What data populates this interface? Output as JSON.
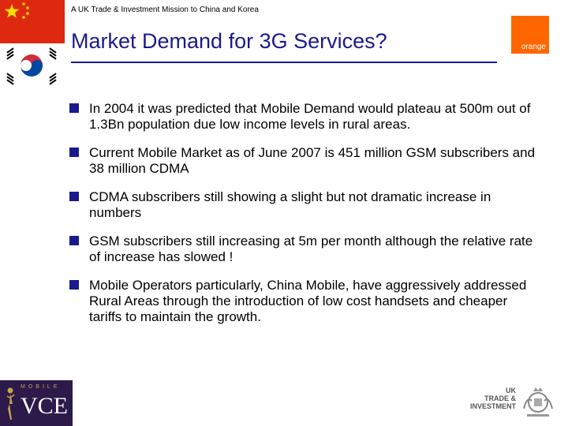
{
  "header": {
    "subtitle": "A UK Trade & Investment Mission to China and Korea",
    "title": "Market Demand for 3G Services?"
  },
  "logos": {
    "orange": "orange",
    "vce_small": "MOBILE",
    "vce_main": "VCE",
    "ukti_lines": [
      "UK",
      "TRADE &",
      "INVESTMENT"
    ]
  },
  "bullets": [
    "In 2004 it was predicted that Mobile Demand would plateau at 500m out of 1.3Bn population due low income levels in rural areas.",
    "Current Mobile Market as of June 2007 is 451 million GSM subscribers and 38 million CDMA",
    "CDMA subscribers still showing a slight but not dramatic increase in numbers",
    "GSM subscribers still increasing at 5m per month although the relative rate of increase has slowed !",
    "Mobile Operators particularly, China Mobile, have aggressively addressed Rural Areas through the introduction of low cost handsets and cheaper tariffs to maintain the growth."
  ],
  "colors": {
    "title": "#1a1a8c",
    "china_red": "#de2910",
    "orange": "#ff6600"
  }
}
